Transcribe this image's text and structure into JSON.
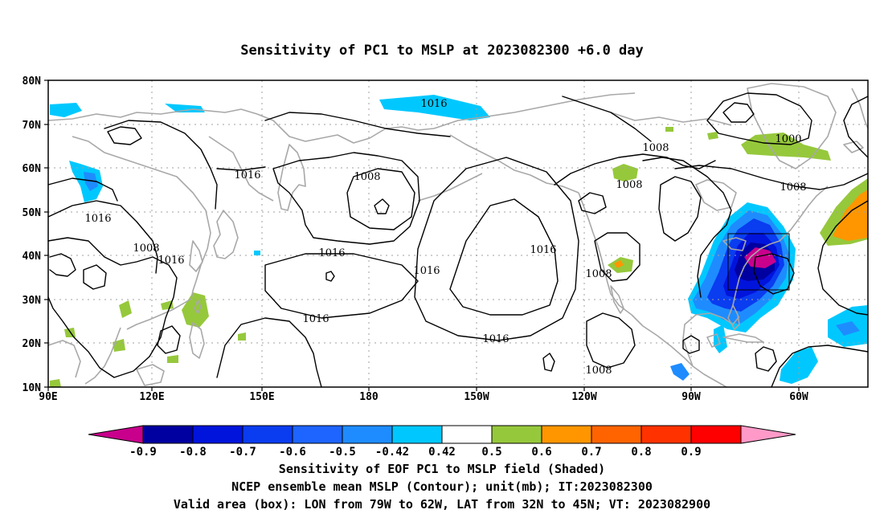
{
  "title": "Sensitivity of PC1 to MSLP at 2023082300 +6.0 day",
  "lon_ticks": [
    "90E",
    "120E",
    "150E",
    "180",
    "150W",
    "120W",
    "90W",
    "60W"
  ],
  "lat_ticks": [
    "80N",
    "70N",
    "60N",
    "50N",
    "40N",
    "30N",
    "20N",
    "10N"
  ],
  "contour_labels": [
    "1016",
    "1008",
    "1016",
    "1016",
    "1008",
    "1016",
    "1016",
    "1016",
    "1016",
    "1016",
    "1016",
    "1008",
    "1008",
    "1008",
    "1000",
    "1008",
    "1008"
  ],
  "colorbar": {
    "labels": [
      "-0.9",
      "-0.8",
      "-0.7",
      "-0.6",
      "-0.5",
      "-0.42",
      "0.42",
      "0.5",
      "0.6",
      "0.7",
      "0.8",
      "0.9"
    ],
    "colors": [
      "#c8008c",
      "#0000a0",
      "#0014dc",
      "#0a3cf0",
      "#1e64ff",
      "#1e8cff",
      "#00c8ff",
      "#ffffff",
      "#96c83c",
      "#ff9600",
      "#ff6400",
      "#ff3200",
      "#ff0000",
      "#ff9ac8"
    ]
  },
  "captions": [
    "Sensitivity of EOF PC1 to MSLP field (Shaded)",
    "NCEP ensemble mean MSLP (Contour); unit(mb); IT:2023082300",
    "Valid area (box): LON from 79W to 62W, LAT from 32N to 45N; VT: 2023082900"
  ],
  "colors": {
    "coast": "#a8a8a8",
    "grid": "#a0a0a0",
    "contour": "#000000"
  }
}
